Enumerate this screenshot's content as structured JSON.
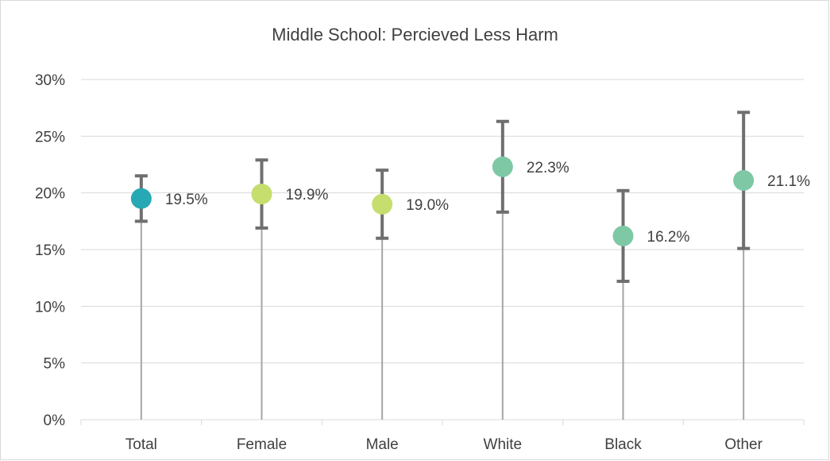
{
  "chart_data": {
    "type": "scatter",
    "title": "Middle School: Percieved Less Harm",
    "xlabel": "",
    "ylabel": "",
    "categories": [
      "Total",
      "Female",
      "Male",
      "White",
      "Black",
      "Other"
    ],
    "values": [
      19.5,
      19.9,
      19.0,
      22.3,
      16.2,
      21.1
    ],
    "error_high": [
      21.5,
      22.9,
      22.0,
      26.3,
      20.2,
      27.1
    ],
    "error_low": [
      17.5,
      16.9,
      16.0,
      18.3,
      12.2,
      15.1
    ],
    "data_labels": [
      "19.5%",
      "19.9%",
      "19.0%",
      "22.3%",
      "16.2%",
      "21.1%"
    ],
    "point_colors": [
      "#26a9b5",
      "#c5de6e",
      "#c5de6e",
      "#7ec8a6",
      "#7ec8a6",
      "#7ec8a6"
    ],
    "y_ticks": [
      0,
      5,
      10,
      15,
      20,
      25,
      30
    ],
    "y_tick_labels": [
      "0%",
      "5%",
      "10%",
      "15%",
      "20%",
      "25%",
      "30%"
    ],
    "ylim": [
      0,
      30
    ],
    "grid": true,
    "legend": "none",
    "gridline_color": "#d9d9d9",
    "drop_line_color": "#a6a6a6",
    "error_bar_color": "#6f6f6f"
  }
}
